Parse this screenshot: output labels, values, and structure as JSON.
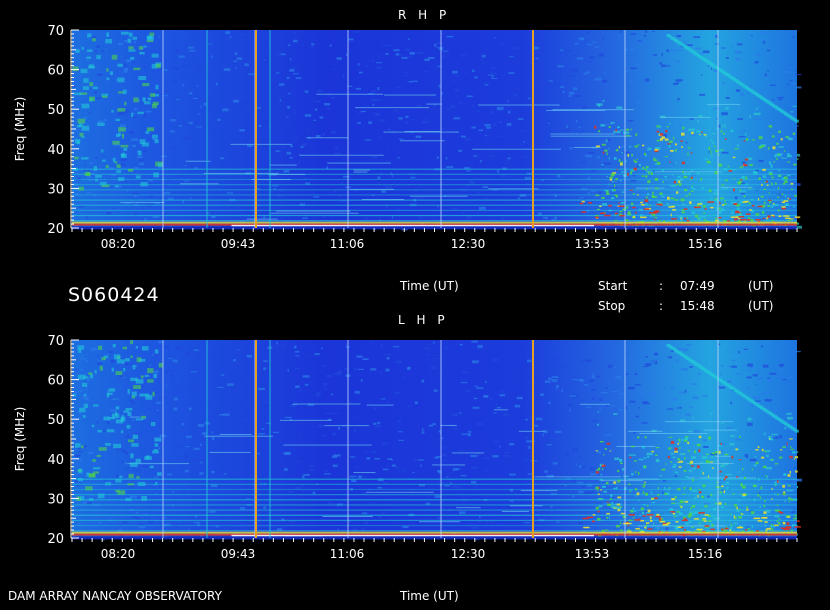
{
  "header": {
    "rhp_title": "R H P",
    "lhp_title": "L H P",
    "station_id": "S060424",
    "time_label": "Time (UT)",
    "start_label": "Start",
    "stop_label": "Stop",
    "colon": ":",
    "start_time": "07:49",
    "stop_time": "15:48",
    "ut_unit": "(UT)"
  },
  "footer": {
    "observatory": "DAM ARRAY  NANCAY OBSERVATORY",
    "time_label": "Time (UT)"
  },
  "colors": {
    "background": "#000000",
    "deep_blue": "#1e2fd8",
    "mid_blue": "#2b66e8",
    "cyan": "#22c8d8",
    "green": "#4cd64a",
    "yellow": "#e8e030",
    "red": "#e03020",
    "white": "#ffffff"
  },
  "chart_data": [
    {
      "type": "heatmap",
      "title": "R H P",
      "xlabel": "Time (UT)",
      "ylabel": "Freq (MHz)",
      "x_ticks": [
        "08:20",
        "09:43",
        "11:06",
        "12:30",
        "13:53",
        "15:16"
      ],
      "y_ticks": [
        20,
        30,
        40,
        50,
        60,
        70
      ],
      "ylim": [
        20,
        70
      ],
      "x_range": [
        "07:49",
        "15:48"
      ]
    },
    {
      "type": "heatmap",
      "title": "L H P",
      "xlabel": "Time (UT)",
      "ylabel": "Freq (MHz)",
      "x_ticks": [
        "08:20",
        "09:43",
        "11:06",
        "12:30",
        "13:53",
        "15:16"
      ],
      "y_ticks": [
        20,
        30,
        40,
        50,
        60,
        70
      ],
      "ylim": [
        20,
        70
      ],
      "x_range": [
        "07:49",
        "15:48"
      ]
    }
  ]
}
